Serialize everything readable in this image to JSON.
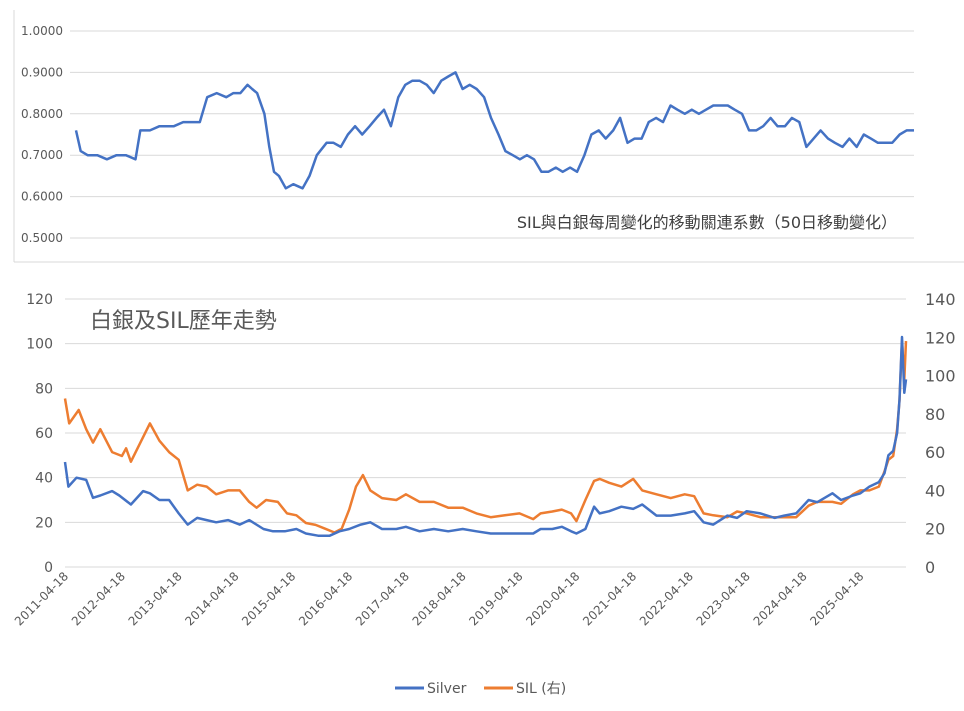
{
  "colors": {
    "silver": "#4472C4",
    "sil": "#ED7D31",
    "axis_text": "#595959",
    "grid": "#D9D9D9",
    "title": "#404040"
  },
  "chart_data": [
    {
      "type": "line",
      "title": "SIL與白銀每周變化的移動關連系數（50日移動變化）",
      "ylim": [
        0.5,
        1.0
      ],
      "y_ticks": [
        "1.0000",
        "0.9000",
        "0.8000",
        "0.7000",
        "0.6000",
        "0.5000"
      ],
      "grid": true,
      "series": [
        {
          "x": [
            "2011-04-18",
            "2011-05-18",
            "2011-07-01",
            "2011-09-01",
            "2011-11-01",
            "2012-01-01",
            "2012-03-01",
            "2012-05-01",
            "2012-06-01",
            "2012-08-01",
            "2012-10-01",
            "2012-12-01",
            "2013-01-01",
            "2013-03-01",
            "2013-05-01",
            "2013-06-15",
            "2013-08-01",
            "2013-10-01",
            "2013-12-01",
            "2014-01-15",
            "2014-03-01",
            "2014-04-15",
            "2014-05-15",
            "2014-06-15",
            "2014-08-01",
            "2014-09-01",
            "2014-10-01",
            "2014-11-01",
            "2014-12-15",
            "2015-02-01",
            "2015-04-01",
            "2015-05-15",
            "2015-07-01",
            "2015-09-01",
            "2015-10-15",
            "2015-12-01",
            "2016-01-15",
            "2016-03-01",
            "2016-04-15",
            "2016-06-01",
            "2016-07-15",
            "2016-09-01",
            "2016-10-15",
            "2016-12-01",
            "2017-01-15",
            "2017-03-01",
            "2017-04-15",
            "2017-06-01",
            "2017-07-15",
            "2017-09-01",
            "2017-10-15",
            "2017-12-01",
            "2018-01-15",
            "2018-03-01",
            "2018-04-15",
            "2018-06-01",
            "2018-07-15",
            "2018-09-01",
            "2018-10-15",
            "2018-12-01",
            "2019-01-15",
            "2019-03-01",
            "2019-04-15",
            "2019-06-01",
            "2019-07-15",
            "2019-09-01",
            "2019-10-15",
            "2019-12-01",
            "2020-01-15",
            "2020-03-01",
            "2020-04-15",
            "2020-06-01",
            "2020-07-15",
            "2020-09-01",
            "2020-10-15",
            "2020-12-01",
            "2021-01-15",
            "2021-03-01",
            "2021-04-15",
            "2021-06-01",
            "2021-07-15",
            "2021-09-01",
            "2021-10-15",
            "2021-12-01",
            "2022-01-15",
            "2022-03-01",
            "2022-04-15",
            "2022-06-01",
            "2022-07-15",
            "2022-09-01",
            "2022-10-15",
            "2022-12-01",
            "2023-01-15",
            "2023-03-01",
            "2023-04-15",
            "2023-06-01",
            "2023-07-15",
            "2023-09-01",
            "2023-10-15",
            "2023-12-01",
            "2024-01-15",
            "2024-03-01",
            "2024-04-15",
            "2024-06-01",
            "2024-07-15",
            "2024-09-01",
            "2024-10-15",
            "2024-12-01",
            "2025-01-15",
            "2025-03-01",
            "2025-04-15",
            "2025-06-01",
            "2025-07-15",
            "2025-09-01",
            "2025-10-15",
            "2025-12-01"
          ],
          "y": [
            0.76,
            0.71,
            0.7,
            0.7,
            0.69,
            0.7,
            0.7,
            0.69,
            0.76,
            0.76,
            0.77,
            0.77,
            0.77,
            0.78,
            0.78,
            0.78,
            0.84,
            0.85,
            0.84,
            0.85,
            0.85,
            0.87,
            0.86,
            0.85,
            0.8,
            0.72,
            0.66,
            0.65,
            0.62,
            0.63,
            0.62,
            0.65,
            0.7,
            0.73,
            0.73,
            0.72,
            0.75,
            0.77,
            0.75,
            0.77,
            0.79,
            0.81,
            0.77,
            0.84,
            0.87,
            0.88,
            0.88,
            0.87,
            0.85,
            0.88,
            0.89,
            0.9,
            0.86,
            0.87,
            0.86,
            0.84,
            0.79,
            0.75,
            0.71,
            0.7,
            0.69,
            0.7,
            0.69,
            0.66,
            0.66,
            0.67,
            0.66,
            0.67,
            0.66,
            0.7,
            0.75,
            0.76,
            0.74,
            0.76,
            0.79,
            0.73,
            0.74,
            0.74,
            0.78,
            0.79,
            0.78,
            0.82,
            0.81,
            0.8,
            0.81,
            0.8,
            0.81,
            0.82,
            0.82,
            0.82,
            0.81,
            0.8,
            0.76,
            0.76,
            0.77,
            0.79,
            0.77,
            0.77,
            0.79,
            0.78,
            0.72,
            0.74,
            0.76,
            0.74,
            0.73,
            0.72,
            0.74,
            0.72,
            0.75,
            0.74,
            0.73,
            0.73,
            0.73,
            0.75,
            0.76,
            0.76
          ]
        }
      ]
    },
    {
      "type": "line",
      "title": "白銀及SIL歷年走勢",
      "ylim": [
        0,
        120
      ],
      "y2lim": [
        0,
        140
      ],
      "y_ticks": [
        "120",
        "100",
        "80",
        "60",
        "40",
        "20",
        "0"
      ],
      "y2_ticks": [
        "140",
        "120",
        "100",
        "80",
        "60",
        "40",
        "20",
        "0"
      ],
      "categories": [
        "2011-04-18",
        "2012-04-18",
        "2013-04-18",
        "2014-04-18",
        "2015-04-18",
        "2016-04-18",
        "2017-04-18",
        "2018-04-18",
        "2019-04-18",
        "2020-04-18",
        "2021-04-18",
        "2022-04-18",
        "2023-04-18",
        "2024-04-18",
        "2025-04-18"
      ],
      "legend_position": "bottom",
      "grid": true,
      "series": [
        {
          "name": "Silver",
          "x": [
            "2011-04-18",
            "2011-05-10",
            "2011-07-01",
            "2011-09-01",
            "2011-10-15",
            "2011-12-01",
            "2012-02-15",
            "2012-04-01",
            "2012-06-15",
            "2012-09-01",
            "2012-10-15",
            "2012-12-15",
            "2013-02-15",
            "2013-04-18",
            "2013-06-15",
            "2013-08-15",
            "2013-10-15",
            "2013-12-15",
            "2014-03-01",
            "2014-05-15",
            "2014-07-15",
            "2014-10-15",
            "2014-12-15",
            "2015-03-01",
            "2015-05-15",
            "2015-07-15",
            "2015-10-01",
            "2015-12-15",
            "2016-02-15",
            "2016-04-18",
            "2016-07-01",
            "2016-09-01",
            "2016-11-15",
            "2017-02-15",
            "2017-04-18",
            "2017-07-15",
            "2017-10-15",
            "2018-01-15",
            "2018-04-18",
            "2018-07-15",
            "2018-10-15",
            "2019-01-15",
            "2019-04-18",
            "2019-07-15",
            "2019-09-01",
            "2019-11-15",
            "2020-01-15",
            "2020-03-15",
            "2020-04-18",
            "2020-06-15",
            "2020-08-10",
            "2020-09-15",
            "2020-11-15",
            "2021-02-01",
            "2021-04-18",
            "2021-06-15",
            "2021-09-15",
            "2021-12-15",
            "2022-03-15",
            "2022-05-15",
            "2022-07-15",
            "2022-09-15",
            "2022-12-15",
            "2023-02-15",
            "2023-04-18",
            "2023-07-15",
            "2023-10-15",
            "2023-12-15",
            "2024-03-01",
            "2024-05-20",
            "2024-07-15",
            "2024-10-20",
            "2024-12-15",
            "2025-03-01",
            "2025-04-18",
            "2025-06-15",
            "2025-08-15",
            "2025-09-20",
            "2025-10-15",
            "2025-11-15",
            "2025-12-10",
            "2025-12-25",
            "2026-01-10",
            "2026-01-25",
            "2026-02-05"
          ],
          "y": [
            47,
            36,
            40,
            39,
            31,
            32,
            34,
            32,
            28,
            34,
            33,
            30,
            30,
            24,
            19,
            22,
            21,
            20,
            21,
            19,
            21,
            17,
            16,
            16,
            17,
            15,
            14,
            14,
            16,
            17,
            19,
            20,
            17,
            17,
            18,
            16,
            17,
            16,
            17,
            16,
            15,
            15,
            15,
            15,
            17,
            17,
            18,
            16,
            15,
            17,
            27,
            24,
            25,
            27,
            26,
            28,
            23,
            23,
            24,
            25,
            20,
            19,
            23,
            22,
            25,
            24,
            22,
            23,
            24,
            30,
            29,
            33,
            30,
            32,
            33,
            36,
            38,
            42,
            50,
            52,
            60,
            75,
            103,
            78,
            84
          ]
        },
        {
          "name": "SIL (右)",
          "x": [
            "2011-04-18",
            "2011-05-15",
            "2011-07-15",
            "2011-09-01",
            "2011-10-15",
            "2011-12-01",
            "2012-02-15",
            "2012-04-18",
            "2012-05-15",
            "2012-06-15",
            "2012-08-15",
            "2012-10-15",
            "2012-12-15",
            "2013-02-15",
            "2013-04-18",
            "2013-06-15",
            "2013-08-15",
            "2013-10-15",
            "2013-12-15",
            "2014-03-01",
            "2014-05-15",
            "2014-07-15",
            "2014-09-01",
            "2014-11-01",
            "2015-01-15",
            "2015-03-15",
            "2015-05-15",
            "2015-07-15",
            "2015-09-15",
            "2015-11-15",
            "2016-01-15",
            "2016-03-01",
            "2016-04-18",
            "2016-06-01",
            "2016-07-15",
            "2016-09-01",
            "2016-11-15",
            "2017-02-15",
            "2017-04-18",
            "2017-07-15",
            "2017-10-15",
            "2018-01-15",
            "2018-04-18",
            "2018-07-15",
            "2018-10-15",
            "2019-01-15",
            "2019-04-18",
            "2019-07-15",
            "2019-09-01",
            "2019-11-15",
            "2020-01-15",
            "2020-03-15",
            "2020-04-18",
            "2020-06-15",
            "2020-08-10",
            "2020-09-15",
            "2020-11-15",
            "2021-02-01",
            "2021-04-18",
            "2021-06-15",
            "2021-09-15",
            "2021-12-15",
            "2022-03-15",
            "2022-05-15",
            "2022-07-15",
            "2022-09-15",
            "2022-12-15",
            "2023-02-15",
            "2023-04-18",
            "2023-07-15",
            "2023-10-15",
            "2023-12-15",
            "2024-03-01",
            "2024-05-20",
            "2024-07-15",
            "2024-10-20",
            "2024-12-15",
            "2025-03-01",
            "2025-04-18",
            "2025-06-15",
            "2025-08-15",
            "2025-09-20",
            "2025-10-15",
            "2025-11-15",
            "2025-12-10",
            "2025-12-25",
            "2026-01-10",
            "2026-01-25",
            "2026-02-05"
          ],
          "y": [
            88,
            75,
            82,
            72,
            65,
            72,
            60,
            58,
            62,
            55,
            65,
            75,
            66,
            60,
            56,
            40,
            43,
            42,
            38,
            40,
            40,
            34,
            31,
            35,
            34,
            28,
            27,
            23,
            22,
            20,
            18,
            20,
            30,
            42,
            48,
            40,
            36,
            35,
            38,
            34,
            34,
            31,
            31,
            28,
            26,
            27,
            28,
            25,
            28,
            29,
            30,
            28,
            24,
            35,
            45,
            46,
            44,
            42,
            46,
            40,
            38,
            36,
            38,
            37,
            28,
            27,
            26,
            29,
            28,
            26,
            26,
            26,
            26,
            32,
            34,
            34,
            33,
            38,
            40,
            40,
            42,
            50,
            56,
            58,
            72,
            87,
            118,
            98,
            118
          ]
        }
      ]
    }
  ]
}
